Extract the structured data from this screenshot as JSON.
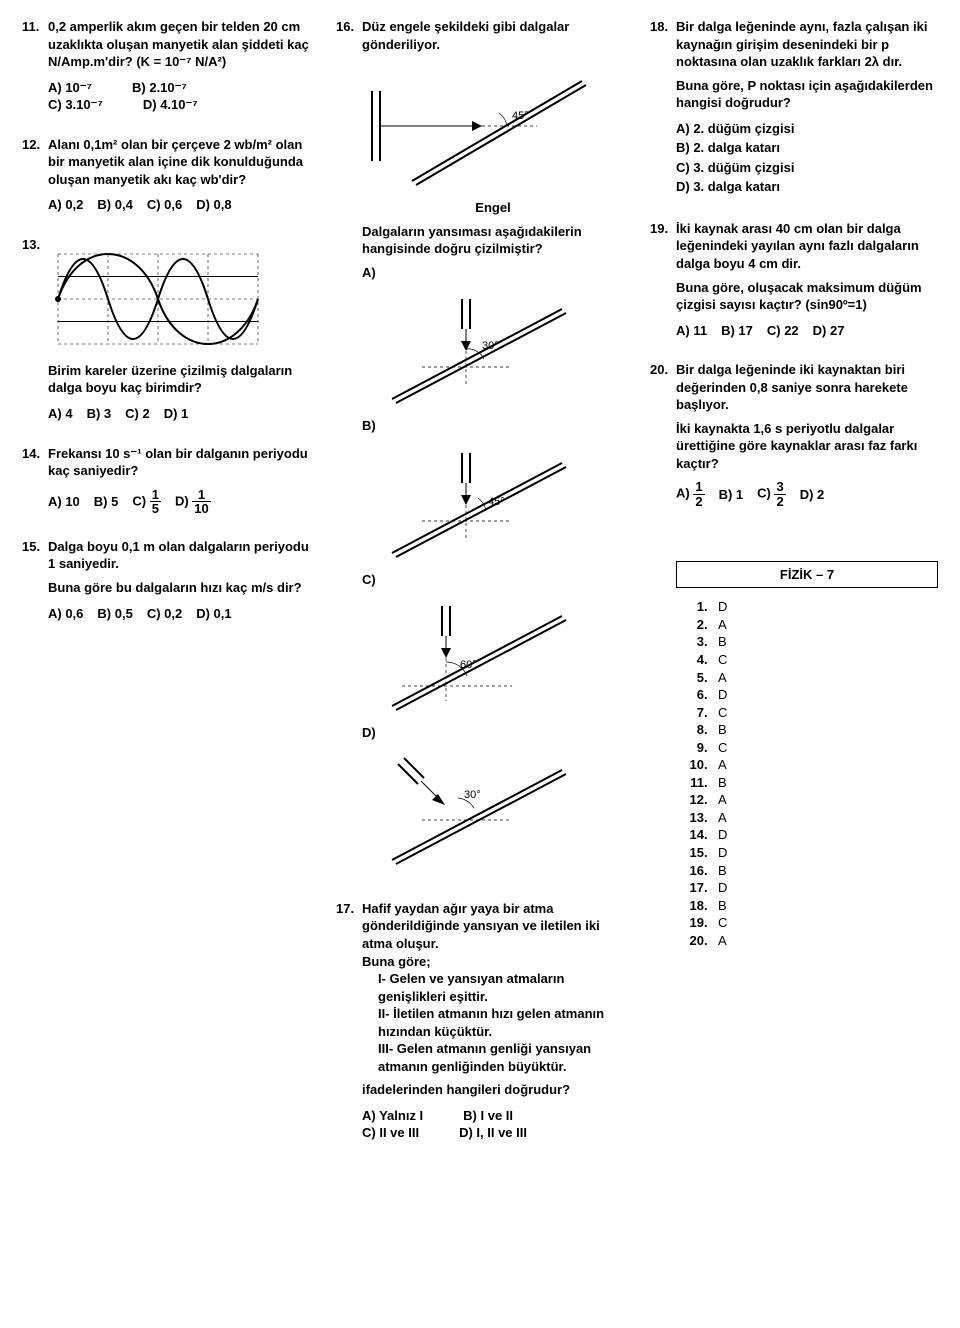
{
  "col1": {
    "q11": {
      "num": "11.",
      "text": "0,2 amperlik akım geçen bir telden 20 cm uzaklıkta oluşan manyetik alan şiddeti kaç N/Amp.m'dir? (K = 10⁻⁷ N/A²)",
      "opts": {
        "a": "A) 10⁻⁷",
        "b": "B) 2.10⁻⁷",
        "c": "C) 3.10⁻⁷",
        "d": "D) 4.10⁻⁷"
      }
    },
    "q12": {
      "num": "12.",
      "text": "Alanı 0,1m² olan bir çerçeve 2 wb/m² olan bir manyetik alan içine dik konulduğunda oluşan manyetik akı kaç wb'dir?",
      "opts": {
        "a": "A) 0,2",
        "b": "B) 0,4",
        "c": "C) 0,6",
        "d": "D) 0,8"
      }
    },
    "q13": {
      "num": "13.",
      "text": "Birim kareler üzerine çizilmiş dalgaların dalga boyu kaç birimdir?",
      "opts": {
        "a": "A) 4",
        "b": "B) 3",
        "c": "C) 2",
        "d": "D) 1"
      }
    },
    "q14": {
      "num": "14.",
      "text": "Frekansı 10 s⁻¹ olan bir dalganın periyodu kaç saniyedir?",
      "opts": {
        "a": "A) 10",
        "b": "B) 5",
        "c": "C)",
        "d": "D)"
      }
    },
    "q15": {
      "num": "15.",
      "line1": "Dalga boyu 0,1 m olan dalgaların periyodu 1 saniyedir.",
      "line2": "Buna göre bu dalgaların hızı kaç m/s dir?",
      "opts": {
        "a": "A) 0,6",
        "b": "B) 0,5",
        "c": "C) 0,2",
        "d": "D) 0,1"
      }
    }
  },
  "col2": {
    "q16": {
      "num": "16.",
      "text": "Düz engele şekildeki gibi dalgalar gönderiliyor.",
      "engel": "Engel",
      "sub": "Dalgaların yansıması aşağıdakilerin hangisinde doğru çizilmiştir?",
      "labels": {
        "a": "A)",
        "b": "B)",
        "c": "C)",
        "d": "D)",
        "a45": "45°",
        "a30": "30°",
        "a60": "60°",
        "a30b": "30°",
        "aTop45": "45°"
      }
    },
    "q17": {
      "num": "17.",
      "l1": "Hafif yaydan ağır yaya bir atma gönderildiğinde yansıyan ve iletilen iki atma oluşur.",
      "l2": "Buna göre;",
      "i1": "I- Gelen ve yansıyan atmaların genişlikleri eşittir.",
      "i2": "II- İletilen atmanın hızı gelen atmanın hızından küçüktür.",
      "i3": "III- Gelen atmanın genliği yansıyan atmanın genliğinden büyüktür.",
      "l3": "ifadelerinden hangileri doğrudur?",
      "opts": {
        "a": "A) Yalnız I",
        "b": "B) I ve II",
        "c": "C) II ve III",
        "d": "D) I, II ve III"
      }
    }
  },
  "col3": {
    "q18": {
      "num": "18.",
      "l1": "Bir dalga leğeninde aynı, fazla çalışan iki kaynağın girişim desenindeki bir p noktasına olan uzaklık farkları 2λ dır.",
      "l2": "Buna göre, P noktası için aşağıdakilerden hangisi doğrudur?",
      "opts": {
        "a": "A) 2. düğüm çizgisi",
        "b": "B) 2. dalga katarı",
        "c": "C) 3. düğüm çizgisi",
        "d": "D) 3. dalga katarı"
      }
    },
    "q19": {
      "num": "19.",
      "l1": "İki kaynak arası 40 cm olan bir dalga leğenindeki yayılan aynı fazlı dalgaların dalga boyu 4 cm dir.",
      "l2": "Buna göre, oluşacak maksimum düğüm çizgisi sayısı kaçtır? (sin90º=1)",
      "opts": {
        "a": "A) 11",
        "b": "B) 17",
        "c": "C) 22",
        "d": "D) 27"
      }
    },
    "q20": {
      "num": "20.",
      "l1": "Bir dalga leğeninde iki kaynaktan biri değerinden 0,8 saniye sonra harekete başlıyor.",
      "l2": "İki kaynakta 1,6 s periyotlu dalgalar ürettiğine göre kaynaklar arası faz farkı kaçtır?",
      "opts": {
        "a": "A)",
        "b": "B) 1",
        "c": "C)",
        "d": "D) 2"
      }
    },
    "answerTitle": "FİZİK – 7",
    "answers": [
      {
        "n": "1.",
        "a": "D"
      },
      {
        "n": "2.",
        "a": "A"
      },
      {
        "n": "3.",
        "a": "B"
      },
      {
        "n": "4.",
        "a": "C"
      },
      {
        "n": "5.",
        "a": "A"
      },
      {
        "n": "6.",
        "a": "D"
      },
      {
        "n": "7.",
        "a": "C"
      },
      {
        "n": "8.",
        "a": "B"
      },
      {
        "n": "9.",
        "a": "C"
      },
      {
        "n": "10.",
        "a": "A"
      },
      {
        "n": "11.",
        "a": "B"
      },
      {
        "n": "12.",
        "a": "A"
      },
      {
        "n": "13.",
        "a": "A"
      },
      {
        "n": "14.",
        "a": "D"
      },
      {
        "n": "15.",
        "a": "D"
      },
      {
        "n": "16.",
        "a": "B"
      },
      {
        "n": "17.",
        "a": "D"
      },
      {
        "n": "18.",
        "a": "B"
      },
      {
        "n": "19.",
        "a": "C"
      },
      {
        "n": "20.",
        "a": "A"
      }
    ]
  }
}
